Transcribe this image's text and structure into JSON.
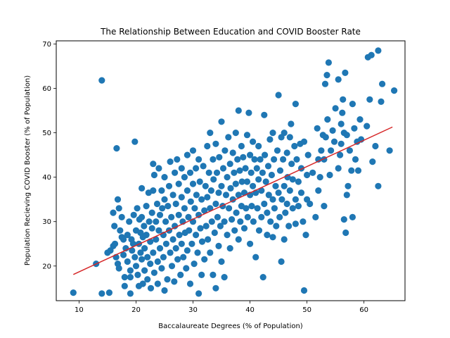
{
  "chart_data": {
    "type": "scatter",
    "title": "The Relationship Between Education and COVID Booster Rate",
    "xlabel": "Baccalaureate Degrees (% of Population)",
    "ylabel": "Population Recieving COVID Booster (% of Population)",
    "xlim": [
      6,
      67.2
    ],
    "ylim": [
      12.2,
      70.7
    ],
    "xticks": [
      10,
      20,
      30,
      40,
      50,
      60
    ],
    "yticks": [
      20,
      30,
      40,
      50,
      60,
      70
    ],
    "grid": false,
    "point_color": "#1f77b4",
    "trendline": {
      "color": "#d62728",
      "x": [
        9,
        65
      ],
      "y": [
        18.1,
        51.3
      ]
    },
    "points": [
      [
        9,
        14
      ],
      [
        13,
        20.5
      ],
      [
        14,
        61.8
      ],
      [
        14,
        13.8
      ],
      [
        15.3,
        14
      ],
      [
        15,
        23
      ],
      [
        15.5,
        23.5
      ],
      [
        16,
        24.5
      ],
      [
        16,
        32
      ],
      [
        16.2,
        29
      ],
      [
        16.3,
        25
      ],
      [
        16.5,
        22
      ],
      [
        16.6,
        46.5
      ],
      [
        16.8,
        35
      ],
      [
        16.8,
        20.5
      ],
      [
        17,
        33
      ],
      [
        17,
        19.5
      ],
      [
        17.2,
        28
      ],
      [
        17.5,
        31
      ],
      [
        17.5,
        26.5
      ],
      [
        17.8,
        26
      ],
      [
        17.8,
        22.5
      ],
      [
        18,
        17.5
      ],
      [
        18,
        15.5
      ],
      [
        18.2,
        24
      ],
      [
        18.5,
        21
      ],
      [
        18.5,
        27
      ],
      [
        18.8,
        30
      ],
      [
        19,
        19
      ],
      [
        19,
        17.5
      ],
      [
        19,
        13.8
      ],
      [
        19.2,
        26
      ],
      [
        19.3,
        23.5
      ],
      [
        19.5,
        25
      ],
      [
        19.6,
        31.5
      ],
      [
        19.8,
        48
      ],
      [
        19.8,
        22
      ],
      [
        20,
        28
      ],
      [
        20,
        20
      ],
      [
        20.2,
        33
      ],
      [
        20.3,
        18
      ],
      [
        20.5,
        25
      ],
      [
        20.5,
        15.5
      ],
      [
        20.6,
        30.5
      ],
      [
        20.8,
        27.5
      ],
      [
        20.8,
        23
      ],
      [
        21,
        37.5
      ],
      [
        21,
        31
      ],
      [
        21,
        21.5
      ],
      [
        21.2,
        26.5
      ],
      [
        21.2,
        16
      ],
      [
        21.4,
        29
      ],
      [
        21.5,
        24
      ],
      [
        21.5,
        19
      ],
      [
        21.8,
        33.5
      ],
      [
        21.8,
        27
      ],
      [
        22,
        22
      ],
      [
        22,
        17
      ],
      [
        22.2,
        36.5
      ],
      [
        22.3,
        30
      ],
      [
        22.5,
        25.5
      ],
      [
        22.5,
        20.5
      ],
      [
        22.6,
        15
      ],
      [
        22.8,
        32
      ],
      [
        22.8,
        28.5
      ],
      [
        23,
        43
      ],
      [
        23,
        37
      ],
      [
        23,
        23
      ],
      [
        23.2,
        40.5
      ],
      [
        23.2,
        18.5
      ],
      [
        23.5,
        30
      ],
      [
        23.5,
        26
      ],
      [
        23.7,
        34
      ],
      [
        23.8,
        21
      ],
      [
        23.8,
        16
      ],
      [
        24,
        42
      ],
      [
        24,
        28
      ],
      [
        24.2,
        31.5
      ],
      [
        24.2,
        24
      ],
      [
        24.5,
        37
      ],
      [
        24.5,
        19.5
      ],
      [
        24.6,
        33
      ],
      [
        24.8,
        27
      ],
      [
        24.8,
        22
      ],
      [
        25,
        40
      ],
      [
        25,
        35
      ],
      [
        25,
        14.5
      ],
      [
        25.2,
        30
      ],
      [
        25.3,
        25
      ],
      [
        25.5,
        17
      ],
      [
        25.6,
        33.5
      ],
      [
        25.8,
        38
      ],
      [
        25.8,
        28
      ],
      [
        26,
        43.5
      ],
      [
        26,
        23
      ],
      [
        26.2,
        31
      ],
      [
        26.3,
        20
      ],
      [
        26.5,
        36
      ],
      [
        26.5,
        26
      ],
      [
        26.7,
        16.5
      ],
      [
        26.8,
        41
      ],
      [
        26.8,
        29
      ],
      [
        27,
        34
      ],
      [
        27,
        24
      ],
      [
        27.2,
        44
      ],
      [
        27.3,
        21.5
      ],
      [
        27.5,
        38.5
      ],
      [
        27.5,
        31.5
      ],
      [
        27.6,
        27
      ],
      [
        27.8,
        18
      ],
      [
        28,
        42
      ],
      [
        28,
        35.5
      ],
      [
        28,
        25
      ],
      [
        28.2,
        30
      ],
      [
        28.3,
        22
      ],
      [
        28.5,
        40
      ],
      [
        28.5,
        33
      ],
      [
        28.6,
        27.5
      ],
      [
        28.8,
        19.5
      ],
      [
        29,
        45
      ],
      [
        29,
        37
      ],
      [
        29,
        23.5
      ],
      [
        29.2,
        31
      ],
      [
        29.3,
        28
      ],
      [
        29.5,
        41
      ],
      [
        29.5,
        16
      ],
      [
        29.6,
        34.5
      ],
      [
        29.8,
        25
      ],
      [
        30,
        46
      ],
      [
        30,
        38.5
      ],
      [
        30,
        30
      ],
      [
        30.2,
        20.5
      ],
      [
        30.3,
        33
      ],
      [
        30.5,
        42
      ],
      [
        30.5,
        27
      ],
      [
        30.6,
        36
      ],
      [
        30.8,
        23
      ],
      [
        31,
        44
      ],
      [
        31,
        31.5
      ],
      [
        31,
        13.8
      ],
      [
        31.2,
        39
      ],
      [
        31.3,
        28.5
      ],
      [
        31.5,
        35
      ],
      [
        31.5,
        18
      ],
      [
        31.6,
        25.5
      ],
      [
        31.8,
        42.5
      ],
      [
        32,
        32.5
      ],
      [
        32,
        21.5
      ],
      [
        32.2,
        38
      ],
      [
        32.3,
        29
      ],
      [
        32.5,
        47
      ],
      [
        32.5,
        35.5
      ],
      [
        32.6,
        26
      ],
      [
        32.8,
        41
      ],
      [
        33,
        50
      ],
      [
        33,
        33
      ],
      [
        33,
        23
      ],
      [
        33.2,
        37
      ],
      [
        33.3,
        30
      ],
      [
        33.5,
        44
      ],
      [
        33.5,
        18
      ],
      [
        33.6,
        39.5
      ],
      [
        33.8,
        27.5
      ],
      [
        34,
        47.5
      ],
      [
        34,
        34
      ],
      [
        34,
        15
      ],
      [
        34.2,
        41
      ],
      [
        34.3,
        31
      ],
      [
        34.5,
        36.5
      ],
      [
        34.5,
        24.5
      ],
      [
        34.6,
        44.5
      ],
      [
        34.8,
        29
      ],
      [
        35,
        52.5
      ],
      [
        35,
        38
      ],
      [
        35,
        21
      ],
      [
        35.2,
        33.5
      ],
      [
        35.3,
        42
      ],
      [
        35.5,
        30
      ],
      [
        35.5,
        17.5
      ],
      [
        35.6,
        46
      ],
      [
        35.8,
        36
      ],
      [
        36,
        40
      ],
      [
        36,
        27
      ],
      [
        36.2,
        49
      ],
      [
        36.3,
        33
      ],
      [
        36.5,
        43
      ],
      [
        36.5,
        24
      ],
      [
        36.6,
        37.5
      ],
      [
        36.8,
        30.5
      ],
      [
        37,
        45.5
      ],
      [
        37,
        35
      ],
      [
        37.2,
        41
      ],
      [
        37.3,
        28
      ],
      [
        37.5,
        50
      ],
      [
        37.5,
        38.5
      ],
      [
        37.6,
        32
      ],
      [
        37.8,
        44
      ],
      [
        38,
        55
      ],
      [
        38,
        36
      ],
      [
        38,
        26
      ],
      [
        38.2,
        41.5
      ],
      [
        38.3,
        30
      ],
      [
        38.5,
        47
      ],
      [
        38.5,
        33.5
      ],
      [
        38.6,
        39
      ],
      [
        38.8,
        44.5
      ],
      [
        39,
        36.5
      ],
      [
        39,
        28.5
      ],
      [
        39.2,
        42
      ],
      [
        39.3,
        33
      ],
      [
        39.5,
        49.5
      ],
      [
        39.5,
        39
      ],
      [
        39.6,
        31
      ],
      [
        39.8,
        54.5
      ],
      [
        40,
        45
      ],
      [
        40,
        36
      ],
      [
        40,
        25
      ],
      [
        40.2,
        41
      ],
      [
        40.3,
        33.5
      ],
      [
        40.5,
        48
      ],
      [
        40.5,
        38
      ],
      [
        40.6,
        30
      ],
      [
        40.8,
        44
      ],
      [
        41,
        36.5
      ],
      [
        41,
        22
      ],
      [
        41.2,
        42
      ],
      [
        41.3,
        33
      ],
      [
        41.5,
        47
      ],
      [
        41.5,
        39.5
      ],
      [
        41.6,
        28
      ],
      [
        41.8,
        44
      ],
      [
        42,
        37
      ],
      [
        42,
        31
      ],
      [
        42.2,
        41
      ],
      [
        42.3,
        17.5
      ],
      [
        42.5,
        54
      ],
      [
        42.5,
        34
      ],
      [
        42.6,
        45
      ],
      [
        42.8,
        39
      ],
      [
        43,
        32
      ],
      [
        43,
        27
      ],
      [
        43.2,
        42.5
      ],
      [
        43.3,
        36
      ],
      [
        43.5,
        48.5
      ],
      [
        43.6,
        30
      ],
      [
        43.8,
        40.5
      ],
      [
        44,
        50
      ],
      [
        44,
        35
      ],
      [
        44,
        26.5
      ],
      [
        44.2,
        44
      ],
      [
        44.3,
        33
      ],
      [
        44.5,
        38
      ],
      [
        44.6,
        29
      ],
      [
        44.8,
        46
      ],
      [
        45,
        58.5
      ],
      [
        45,
        36.5
      ],
      [
        45.2,
        31
      ],
      [
        45.3,
        41.5
      ],
      [
        45.5,
        21
      ],
      [
        45.5,
        49
      ],
      [
        45.6,
        35
      ],
      [
        45.8,
        44
      ],
      [
        46,
        50
      ],
      [
        46,
        38
      ],
      [
        46,
        26
      ],
      [
        46.2,
        32
      ],
      [
        46.5,
        45.5
      ],
      [
        46.5,
        34
      ],
      [
        46.6,
        40
      ],
      [
        46.8,
        29
      ],
      [
        47,
        49
      ],
      [
        47,
        37
      ],
      [
        47.2,
        52
      ],
      [
        47.3,
        43
      ],
      [
        47.5,
        33
      ],
      [
        47.5,
        39.5
      ],
      [
        47.8,
        47
      ],
      [
        48,
        56.5
      ],
      [
        48,
        35
      ],
      [
        48,
        29.5
      ],
      [
        48.2,
        44
      ],
      [
        48.5,
        39
      ],
      [
        48.5,
        33.5
      ],
      [
        48.8,
        47.5
      ],
      [
        49,
        42
      ],
      [
        49,
        36.5
      ],
      [
        49.3,
        30
      ],
      [
        49.5,
        14.5
      ],
      [
        49.5,
        48
      ],
      [
        49.8,
        27
      ],
      [
        50,
        40.5
      ],
      [
        50,
        35
      ],
      [
        50.2,
        45
      ],
      [
        50.5,
        34
      ],
      [
        51,
        41
      ],
      [
        51.5,
        31
      ],
      [
        51.8,
        51
      ],
      [
        52,
        44
      ],
      [
        52,
        37
      ],
      [
        52.3,
        40
      ],
      [
        52.5,
        46
      ],
      [
        52.8,
        49.5
      ],
      [
        53,
        33.5
      ],
      [
        53,
        44
      ],
      [
        53.2,
        61
      ],
      [
        53.3,
        49
      ],
      [
        53.5,
        63
      ],
      [
        53.6,
        53
      ],
      [
        53.8,
        65.8
      ],
      [
        54,
        40.5
      ],
      [
        54.2,
        46
      ],
      [
        54.5,
        50.5
      ],
      [
        54.8,
        48
      ],
      [
        55,
        55.5
      ],
      [
        55.5,
        42
      ],
      [
        55.5,
        62
      ],
      [
        55.8,
        45
      ],
      [
        56,
        52
      ],
      [
        56,
        47.5
      ],
      [
        56.2,
        54.5
      ],
      [
        56.3,
        57.5
      ],
      [
        56.5,
        30.5
      ],
      [
        56.5,
        50
      ],
      [
        56.7,
        63.5
      ],
      [
        56.8,
        27.5
      ],
      [
        57,
        36
      ],
      [
        57,
        49.5
      ],
      [
        57.2,
        38
      ],
      [
        57.5,
        46
      ],
      [
        57.8,
        41.5
      ],
      [
        58,
        56.5
      ],
      [
        58,
        31
      ],
      [
        58.3,
        51
      ],
      [
        58.5,
        44
      ],
      [
        58.8,
        48
      ],
      [
        59,
        41.5
      ],
      [
        59.3,
        53
      ],
      [
        59.5,
        48.5
      ],
      [
        60.5,
        51.5
      ],
      [
        60.7,
        67
      ],
      [
        61,
        57.5
      ],
      [
        61.3,
        67.5
      ],
      [
        61.5,
        43.5
      ],
      [
        62,
        47
      ],
      [
        62.5,
        68.5
      ],
      [
        62.5,
        38
      ],
      [
        63,
        57
      ],
      [
        63.2,
        61
      ],
      [
        64.5,
        46
      ],
      [
        65.3,
        59.5
      ]
    ]
  }
}
